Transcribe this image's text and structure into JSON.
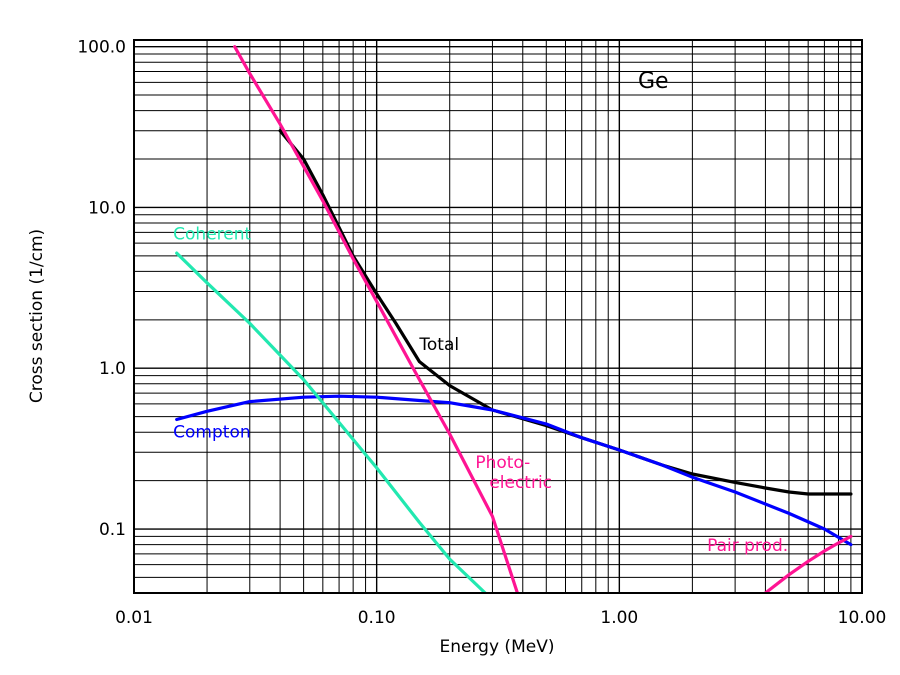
{
  "chart_data": {
    "type": "line",
    "annotation": "Ge",
    "xlabel": "Energy (MeV)",
    "ylabel": "Cross section (1/cm)",
    "x_scale": "log",
    "y_scale": "log",
    "xlim": [
      0.01,
      10.0
    ],
    "ylim": [
      0.04,
      110
    ],
    "grid": true,
    "x_ticks": [
      {
        "value": 0.01,
        "label": "0.01"
      },
      {
        "value": 0.1,
        "label": "0.10"
      },
      {
        "value": 1.0,
        "label": "1.00"
      },
      {
        "value": 10.0,
        "label": "10.00"
      }
    ],
    "y_ticks": [
      {
        "value": 0.1,
        "label": "0.1"
      },
      {
        "value": 1.0,
        "label": "1.0"
      },
      {
        "value": 10.0,
        "label": "10.0"
      },
      {
        "value": 100.0,
        "label": "100.0"
      }
    ],
    "series": [
      {
        "name": "Total",
        "color": "#000000",
        "x": [
          0.04,
          0.05,
          0.06,
          0.07,
          0.08,
          0.1,
          0.12,
          0.15,
          0.2,
          0.3,
          0.5,
          0.7,
          1.0,
          1.5,
          2.0,
          3.0,
          4.0,
          5.0,
          6.0,
          8.0,
          9.0
        ],
        "y": [
          30.0,
          20.0,
          12.0,
          7.5,
          5.0,
          2.9,
          1.9,
          1.1,
          0.78,
          0.55,
          0.44,
          0.37,
          0.31,
          0.25,
          0.22,
          0.195,
          0.18,
          0.17,
          0.165,
          0.165,
          0.165
        ]
      },
      {
        "name": "Compton",
        "color": "#0000ff",
        "x": [
          0.015,
          0.02,
          0.03,
          0.05,
          0.07,
          0.1,
          0.15,
          0.2,
          0.3,
          0.5,
          0.7,
          1.0,
          1.5,
          2.0,
          3.0,
          5.0,
          7.0,
          9.0
        ],
        "y": [
          0.48,
          0.54,
          0.62,
          0.66,
          0.67,
          0.66,
          0.63,
          0.61,
          0.55,
          0.45,
          0.37,
          0.31,
          0.25,
          0.21,
          0.17,
          0.125,
          0.1,
          0.08
        ]
      },
      {
        "name": "Coherent",
        "color": "#22e8b0",
        "x": [
          0.015,
          0.02,
          0.03,
          0.05,
          0.07,
          0.1,
          0.15,
          0.2,
          0.28
        ],
        "y": [
          5.2,
          3.4,
          1.9,
          0.85,
          0.46,
          0.24,
          0.11,
          0.065,
          0.04
        ]
      },
      {
        "name": "Photo-electric",
        "color": "#ff1493",
        "x": [
          0.026,
          0.03,
          0.04,
          0.05,
          0.06,
          0.08,
          0.1,
          0.15,
          0.2,
          0.3,
          0.38
        ],
        "y": [
          100.0,
          68.0,
          33.0,
          18.0,
          11.0,
          4.8,
          2.6,
          0.85,
          0.39,
          0.12,
          0.04
        ]
      },
      {
        "name": "Pair prod.",
        "color": "#ff1493",
        "x": [
          4.0,
          5.0,
          6.0,
          7.0,
          8.0,
          9.0
        ],
        "y": [
          0.04,
          0.052,
          0.063,
          0.073,
          0.082,
          0.09
        ]
      }
    ],
    "curve_labels": [
      {
        "lines": [
          "Total"
        ],
        "color": "#000000",
        "x": 0.15,
        "y": 1.3
      },
      {
        "lines": [
          "Compton"
        ],
        "color": "#0000ff",
        "x": 0.0145,
        "y": 0.37
      },
      {
        "lines": [
          "Coherent"
        ],
        "color": "#22e8b0",
        "x": 0.0145,
        "y": 6.3
      },
      {
        "lines": [
          "Photo-",
          "electric"
        ],
        "color": "#ff1493",
        "x": 0.255,
        "y": 0.24
      },
      {
        "lines": [
          "Pair prod."
        ],
        "color": "#ff1493",
        "x": 2.3,
        "y": 0.073
      }
    ]
  }
}
